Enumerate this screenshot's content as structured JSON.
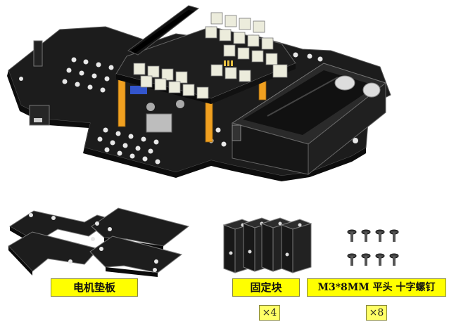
{
  "labels": {
    "motor_pad": "电机垫板",
    "fixing_block": "固定块",
    "screw": "M3*8MM 平头 十字螺钉"
  },
  "quantities": {
    "fixing_block": "×4",
    "screw": "×8"
  },
  "colors": {
    "label_bg": "#ffff00",
    "board": "#1a1a1a",
    "standoff": "#f0a020",
    "connector": "#e8e8d8"
  }
}
